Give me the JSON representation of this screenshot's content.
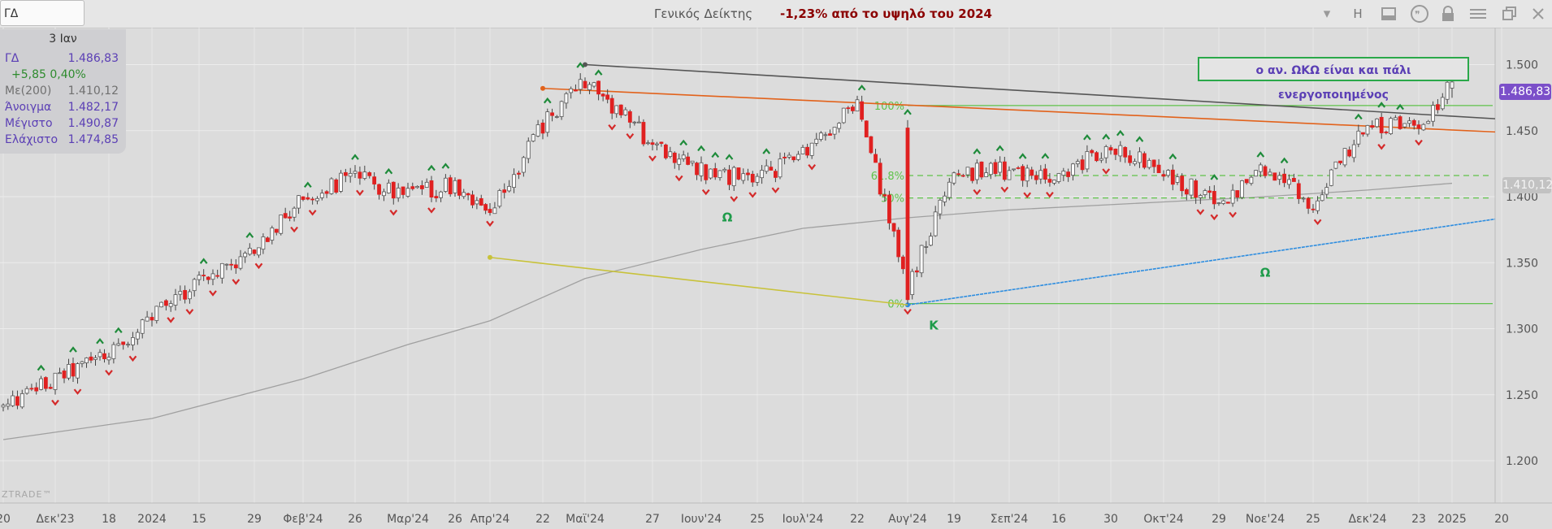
{
  "header": {
    "symbol": "ΓΔ",
    "index_name": "Γενικός Δείκτης",
    "headline": "-1,23% από το υψηλό του 2024",
    "toolbar_icons": [
      "chevron-down-icon",
      "h-label",
      "panel-icon",
      "quote-icon",
      "lock-icon",
      "menu-icon",
      "restore-icon",
      "close-icon"
    ],
    "h_label": "H"
  },
  "info_panel": {
    "date": "3 Ιαν",
    "rows": [
      {
        "label": "ΓΔ",
        "value": "1.486,83",
        "color": "#5b3fb5"
      },
      {
        "label": "+5,85 0,40%",
        "value": "",
        "color": "#2e8b2e"
      },
      {
        "label": "Με(200)",
        "value": "1.410,12",
        "color": "#707070"
      },
      {
        "label": "Άνοιγμα",
        "value": "1.482,17",
        "color": "#5b3fb5"
      },
      {
        "label": "Μέγιστο",
        "value": "1.490,87",
        "color": "#5b3fb5"
      },
      {
        "label": "Ελάχιστο",
        "value": "1.474,85",
        "color": "#5b3fb5"
      }
    ]
  },
  "price_tag": "1.486,83",
  "ma_tag": "1.410,12",
  "annotation": "ο αν. ΩΚΩ είναι και πάλι ενεργοποιημένος",
  "watermark": "ZTRADE™",
  "colors": {
    "up_candle": "#fbfbfb",
    "down_candle": "#e02020",
    "ma_line": "#a0a0a0",
    "fib_lines": "#5fc24a",
    "resistance_dark": "#555555",
    "resistance_orange": "#e2621b",
    "support_blue": "#2d8de0",
    "neckline_yellow": "#c8c23a",
    "fractal_up": "#1e8b3a",
    "fractal_down": "#d42a2a",
    "pattern_label": "#1e9b4a"
  },
  "chart_data": {
    "type": "candlestick",
    "y_axis": {
      "ticks": [
        1200,
        1250,
        1300,
        1350,
        1400,
        1450,
        1500
      ],
      "tick_labels": [
        "1.200",
        "1.250",
        "1.300",
        "1.350",
        "1.400",
        "1.450",
        "1.500"
      ],
      "ylim": [
        1168,
        1528
      ]
    },
    "x_axis": {
      "tick_labels": [
        "20",
        "Δεκ'23",
        "18",
        "2024",
        "15",
        "29",
        "Φεβ'24",
        "26",
        "Μαρ'24",
        "26",
        "Απρ'24",
        "22",
        "Μαϊ'24",
        "27",
        "Ιουν'24",
        "25",
        "Ιουλ'24",
        "22",
        "Αυγ'24",
        "19",
        "Σεπ'24",
        "16",
        "30",
        "Οκτ'24",
        "29",
        "Νοε'24",
        "25",
        "Δεκ'24",
        "23",
        "2025",
        "20"
      ]
    },
    "anchors": [
      {
        "label": "20",
        "close": 1240
      },
      {
        "label": "Δεκ'23",
        "close": 1262
      },
      {
        "label": "18",
        "close": 1282
      },
      {
        "label": "2024",
        "close": 1308
      },
      {
        "label": "15",
        "close": 1338
      },
      {
        "label": "29",
        "close": 1358
      },
      {
        "label": "Φεβ'24",
        "close": 1400
      },
      {
        "label": "26",
        "close": 1415
      },
      {
        "label": "Μαρ'24",
        "close": 1400
      },
      {
        "label": "26",
        "close": 1410
      },
      {
        "label": "Απρ'24",
        "close": 1385
      },
      {
        "label": "22",
        "close": 1455
      },
      {
        "label": "Μαϊ'24",
        "close": 1488
      },
      {
        "label": "27",
        "close": 1440
      },
      {
        "label": "Ιουν'24",
        "close": 1420
      },
      {
        "label": "25",
        "close": 1412
      },
      {
        "label": "Ιουλ'24",
        "close": 1435
      },
      {
        "label": "22",
        "close": 1470
      },
      {
        "label": "Αυγ'24",
        "close": 1330
      },
      {
        "label": "19",
        "close": 1418
      },
      {
        "label": "Σεπ'24",
        "close": 1420
      },
      {
        "label": "16",
        "close": 1412
      },
      {
        "label": "30",
        "close": 1440
      },
      {
        "label": "Οκτ'24",
        "close": 1418
      },
      {
        "label": "29",
        "close": 1396
      },
      {
        "label": "Νοε'24",
        "close": 1420
      },
      {
        "label": "25",
        "close": 1395
      },
      {
        "label": "Δεκ'24",
        "close": 1455
      },
      {
        "label": "23",
        "close": 1452
      },
      {
        "label": "2025",
        "close": 1486.83
      }
    ],
    "series": [
      {
        "name": "ΓΔ",
        "last": 1486.83
      },
      {
        "name": "Με(200)",
        "last": 1410.12,
        "points": [
          {
            "label": "20",
            "value": 1216
          },
          {
            "label": "2024",
            "value": 1232
          },
          {
            "label": "Φεβ'24",
            "value": 1262
          },
          {
            "label": "Μαρ'24",
            "value": 1288
          },
          {
            "label": "Απρ'24",
            "value": 1306
          },
          {
            "label": "Μαϊ'24",
            "value": 1338
          },
          {
            "label": "Ιουν'24",
            "value": 1360
          },
          {
            "label": "Ιουλ'24",
            "value": 1376
          },
          {
            "label": "Αυγ'24",
            "value": 1384
          },
          {
            "label": "Σεπ'24",
            "value": 1390
          },
          {
            "label": "Οκτ'24",
            "value": 1396
          },
          {
            "label": "Νοε'24",
            "value": 1400
          },
          {
            "label": "Δεκ'24",
            "value": 1405
          },
          {
            "label": "2025",
            "value": 1410.12
          }
        ]
      }
    ],
    "fibonacci": [
      {
        "label": "100%",
        "value": 1469
      },
      {
        "label": "61.8%",
        "value": 1416
      },
      {
        "label": "50%",
        "value": 1399
      },
      {
        "label": "0%",
        "value": 1319
      }
    ],
    "trendlines": [
      {
        "name": "resistance-dark",
        "from": {
          "label": "Μαϊ'24",
          "value": 1500
        },
        "to": {
          "label": "20",
          "value": 1459
        }
      },
      {
        "name": "resistance-orange",
        "from": {
          "label": "22",
          "value": 1482
        },
        "to": {
          "label": "20",
          "value": 1449
        }
      },
      {
        "name": "support-blue",
        "from": {
          "label": "Αυγ'24",
          "value": 1318
        },
        "to": {
          "label": "20",
          "value": 1383
        }
      },
      {
        "name": "neckline-yellow",
        "from": {
          "label": "Απρ'24",
          "value": 1354
        },
        "to": {
          "label": "Αυγ'24",
          "value": 1318
        }
      }
    ],
    "pattern_labels": [
      {
        "text": "Ω",
        "label": "Ιουν'24",
        "value": 1385
      },
      {
        "text": "Κ",
        "label": "Αυγ'24",
        "value": 1303
      },
      {
        "text": "Ω",
        "label": "Νοε'24",
        "value": 1343
      }
    ]
  }
}
